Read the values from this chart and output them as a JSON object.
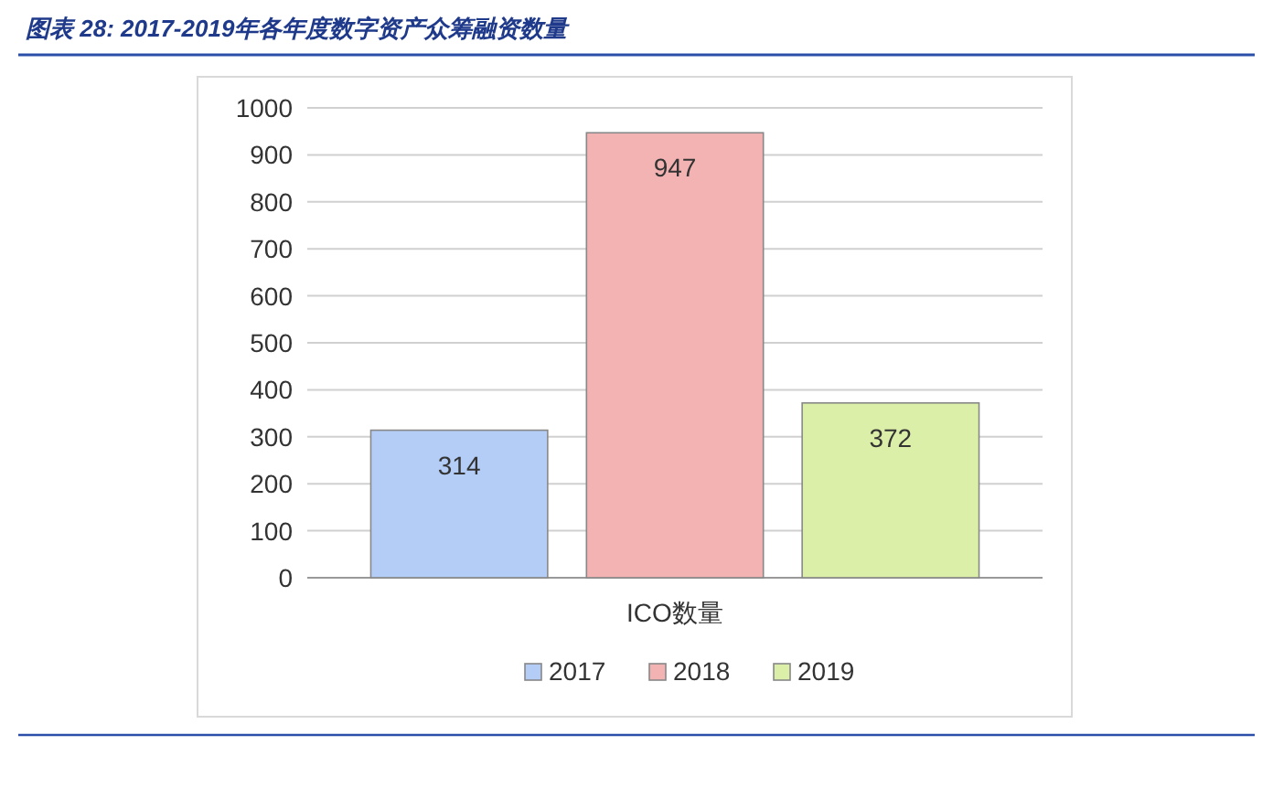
{
  "chart_data": {
    "type": "bar",
    "title": "图表 28: 2017-2019年各年度数字资产众筹融资数量",
    "categories": [
      "ICO数量"
    ],
    "series": [
      {
        "name": "2017",
        "color": "#b3cdf6",
        "values": [
          314
        ]
      },
      {
        "name": "2018",
        "color": "#f3b3b3",
        "values": [
          947
        ]
      },
      {
        "name": "2019",
        "color": "#dcefa9",
        "values": [
          372
        ]
      }
    ],
    "ylim": [
      0,
      1000
    ],
    "yticks": [
      0,
      100,
      200,
      300,
      400,
      500,
      600,
      700,
      800,
      900,
      1000
    ],
    "grid": "y",
    "legend": "bottom",
    "data_labels": true
  }
}
